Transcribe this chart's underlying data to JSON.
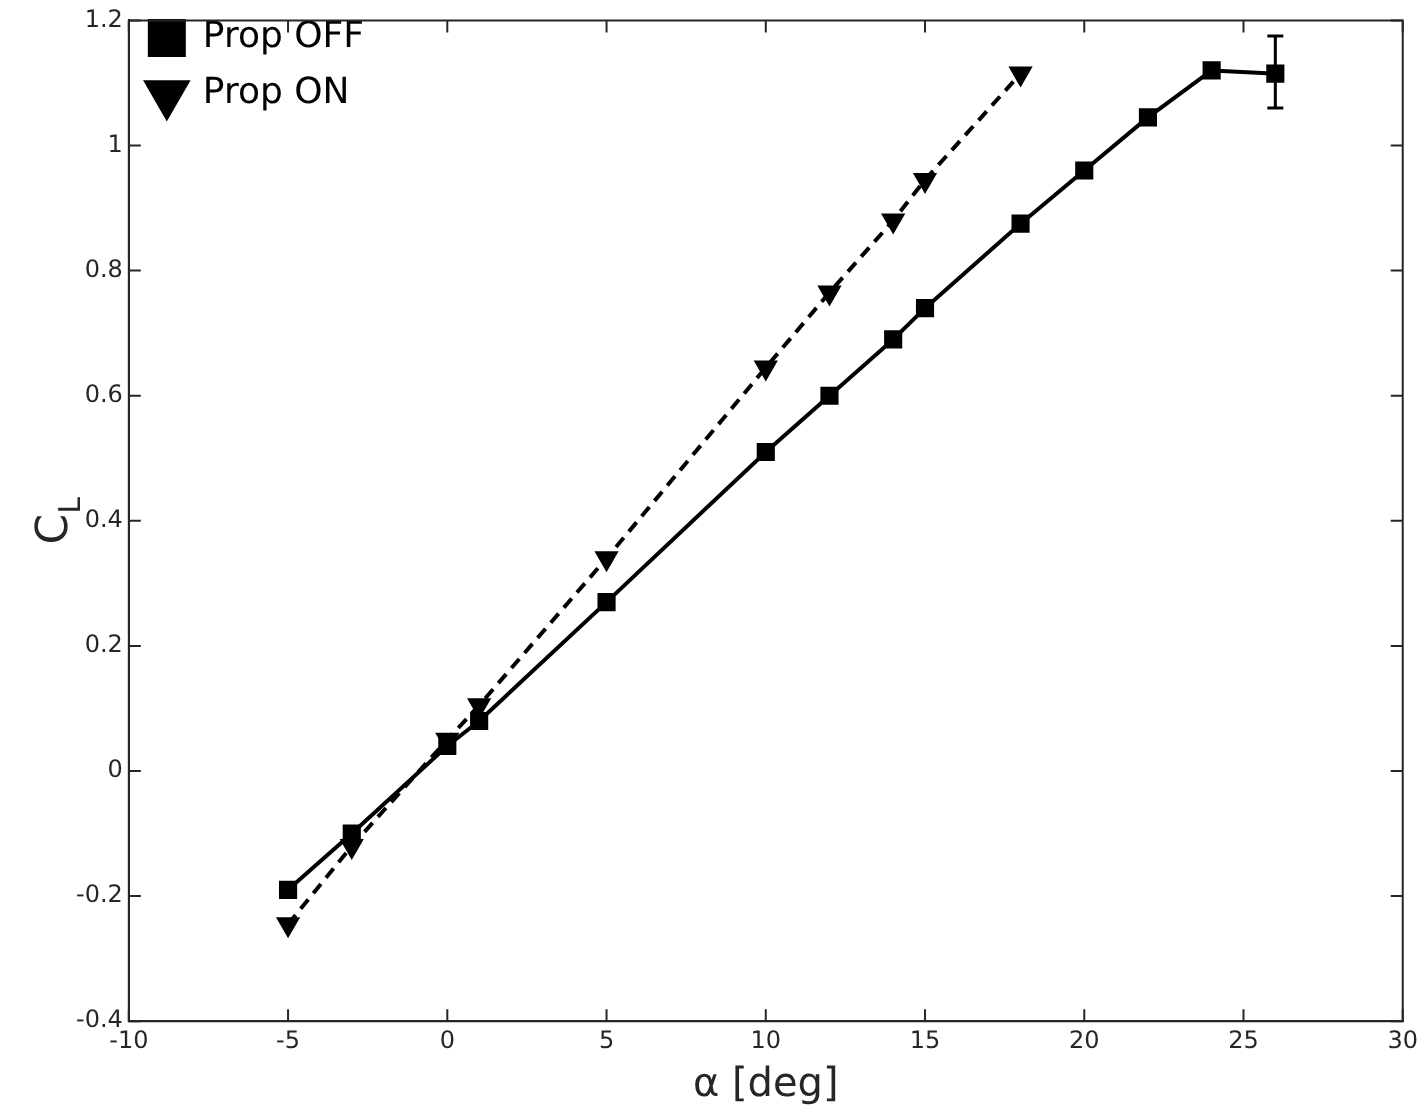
{
  "chart_data": {
    "type": "line",
    "xlabel": "α [deg]",
    "ylabel": "C$_{L}$",
    "xlim": [
      -10,
      30
    ],
    "ylim": [
      -0.4,
      1.2
    ],
    "xticks": [
      -10,
      -5,
      0,
      5,
      10,
      15,
      20,
      25,
      30
    ],
    "yticks": [
      -0.4,
      -0.2,
      0,
      0.2,
      0.4,
      0.6,
      0.8,
      1,
      1.2
    ],
    "grid": false,
    "legend": "top left",
    "series": [
      {
        "name": "Prop OFF",
        "color": "#000000",
        "marker": "square",
        "line_style": "solid",
        "x": [
          -5,
          -3,
          0,
          1,
          5,
          10,
          12,
          14,
          15,
          18,
          20,
          22,
          24,
          26
        ],
        "values": [
          -0.19,
          -0.1,
          0.04,
          0.08,
          0.27,
          0.51,
          0.6,
          0.69,
          0.74,
          0.875,
          0.96,
          1.045,
          1.12,
          1.115
        ],
        "errors": [
          null,
          null,
          null,
          null,
          null,
          null,
          null,
          null,
          null,
          null,
          null,
          null,
          null,
          [
            1.06,
            1.175
          ]
        ]
      },
      {
        "name": "Prop ON",
        "color": "#000000",
        "marker": "triangle",
        "line_style": "dashed",
        "x": [
          -5,
          -3,
          0,
          1,
          5,
          10,
          12,
          14,
          15,
          18
        ],
        "values": [
          -0.245,
          -0.12,
          0.05,
          0.105,
          0.34,
          0.645,
          0.765,
          0.88,
          0.945,
          1.115
        ]
      }
    ]
  }
}
